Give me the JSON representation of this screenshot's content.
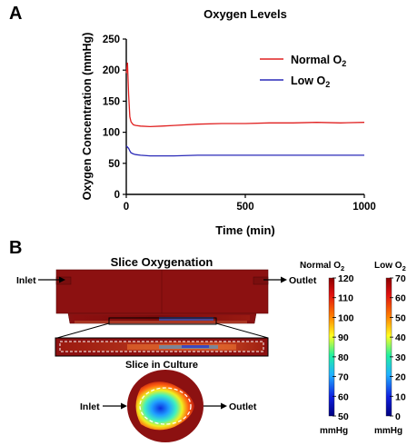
{
  "panel_a": {
    "letter": "A",
    "chart_data": {
      "type": "line",
      "title": "Oxygen Levels",
      "xlabel": "Time (min)",
      "ylabel": "Oxygen Concentration (mmHg)",
      "xlim": [
        0,
        1000
      ],
      "ylim": [
        0,
        250
      ],
      "x_ticks": [
        0,
        500,
        1000
      ],
      "y_ticks": [
        0,
        50,
        100,
        150,
        200,
        250
      ],
      "grid": false,
      "legend_position": "top-right",
      "series": [
        {
          "name": "Normal O2",
          "legend_main": "Normal O",
          "legend_sub": "2",
          "color": "#e02020",
          "x": [
            0,
            5,
            10,
            15,
            20,
            25,
            30,
            40,
            60,
            100,
            150,
            200,
            300,
            400,
            500,
            600,
            700,
            800,
            900,
            1000
          ],
          "y": [
            195,
            212,
            160,
            125,
            117,
            114,
            112,
            111,
            110,
            109,
            110,
            111,
            113,
            114,
            114,
            115,
            115,
            116,
            115,
            116
          ]
        },
        {
          "name": "Low O2",
          "legend_main": "Low O",
          "legend_sub": "2",
          "color": "#2a2ab8",
          "x": [
            0,
            5,
            10,
            15,
            20,
            30,
            40,
            60,
            100,
            150,
            200,
            300,
            400,
            500,
            600,
            700,
            800,
            900,
            1000
          ],
          "y": [
            78,
            76,
            74,
            70,
            67,
            65,
            64,
            63,
            62,
            62,
            62,
            63,
            63,
            63,
            63,
            63,
            63,
            63,
            63
          ]
        }
      ]
    }
  },
  "panel_b": {
    "letter": "B",
    "title": "Slice Oxygenation",
    "inlet_label": "Inlet",
    "outlet_label": "Outlet",
    "slice_caption": "Slice in Culture",
    "colorbars": [
      {
        "title_main": "Normal O",
        "title_sub": "2",
        "ticks": [
          "120",
          "110",
          "100",
          "90",
          "80",
          "70",
          "60",
          "50"
        ],
        "unit": "mmHg"
      },
      {
        "title_main": "Low O",
        "title_sub": "2",
        "ticks": [
          "70",
          "60",
          "50",
          "40",
          "30",
          "20",
          "10",
          "0"
        ],
        "unit": "mmHg"
      }
    ],
    "colors": {
      "chamber_red": "#8c1111",
      "chamber_dark": "#6d0a0a"
    }
  }
}
